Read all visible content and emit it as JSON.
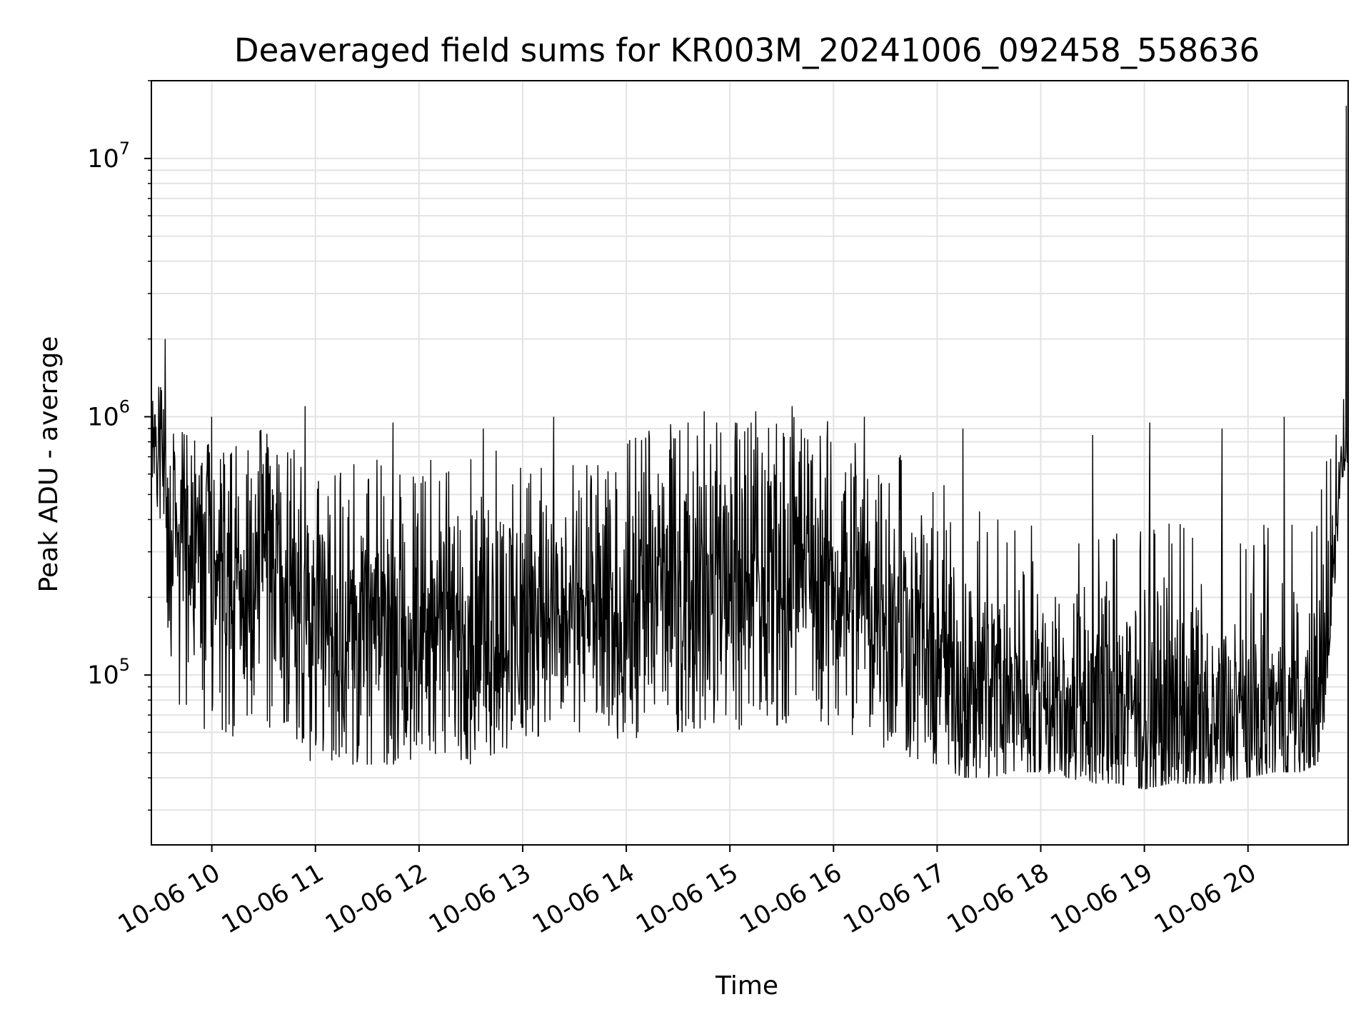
{
  "chart_data": {
    "type": "line",
    "title": "Deaveraged field sums for KR003M_20241006_092458_558636",
    "xlabel": "Time",
    "ylabel": "Peak ADU - average",
    "yscale": "log",
    "grid": true,
    "x_range": [
      "2024-10-06 09:25",
      "2024-10-06 20:58"
    ],
    "ylim": [
      22000,
      20000000
    ],
    "x_ticks": [
      "10-06 10",
      "10-06 11",
      "10-06 12",
      "10-06 13",
      "10-06 14",
      "10-06 15",
      "10-06 16",
      "10-06 17",
      "10-06 18",
      "10-06 19",
      "10-06 20"
    ],
    "y_ticks": [
      {
        "value": 100000,
        "base": "10",
        "exp": "5"
      },
      {
        "value": 1000000,
        "base": "10",
        "exp": "6"
      },
      {
        "value": 10000000,
        "base": "10",
        "exp": "7"
      }
    ],
    "line_color": "#000000",
    "series": [
      {
        "x_hours": [
          9.42,
          9.5,
          9.58,
          9.67,
          9.75,
          9.83,
          9.92,
          10.0,
          10.17,
          10.33,
          10.5,
          10.67,
          10.83,
          11.0,
          11.25,
          11.5,
          11.75,
          12.0,
          12.25,
          12.5,
          12.75,
          13.0,
          13.25,
          13.5,
          13.75,
          14.0,
          14.25,
          14.5,
          14.75,
          15.0,
          15.25,
          15.5,
          15.75,
          16.0,
          16.25,
          16.5,
          16.75,
          17.0,
          17.25,
          17.5,
          17.75,
          18.0,
          18.25,
          18.5,
          18.75,
          19.0,
          19.25,
          19.5,
          19.75,
          20.0,
          20.25,
          20.5,
          20.67,
          20.75,
          20.83,
          20.92,
          20.97
        ],
        "center": [
          900000,
          700000,
          420000,
          330000,
          300000,
          290000,
          290000,
          300000,
          230000,
          220000,
          330000,
          300000,
          200000,
          170000,
          160000,
          150000,
          155000,
          150000,
          160000,
          150000,
          150000,
          170000,
          185000,
          175000,
          170000,
          180000,
          220000,
          240000,
          250000,
          250000,
          250000,
          260000,
          270000,
          250000,
          230000,
          200000,
          160000,
          110000,
          100000,
          100000,
          95000,
          90000,
          85000,
          80000,
          75000,
          72000,
          70000,
          70000,
          68000,
          70000,
          72000,
          70000,
          75000,
          100000,
          300000,
          700000,
          900000
        ],
        "upper": [
          1600000,
          1400000,
          1000000,
          900000,
          850000,
          850000,
          850000,
          850000,
          750000,
          800000,
          900000,
          900000,
          700000,
          650000,
          650000,
          700000,
          650000,
          700000,
          700000,
          700000,
          750000,
          700000,
          650000,
          650000,
          650000,
          800000,
          900000,
          950000,
          950000,
          950000,
          950000,
          1000000,
          1000000,
          950000,
          900000,
          850000,
          800000,
          600000,
          500000,
          450000,
          400000,
          400000,
          400000,
          380000,
          380000,
          380000,
          400000,
          380000,
          380000,
          400000,
          400000,
          380000,
          400000,
          700000,
          900000,
          1200000,
          1300000
        ],
        "lower": [
          600000,
          350000,
          130000,
          70000,
          60000,
          60000,
          60000,
          60000,
          55000,
          55000,
          60000,
          65000,
          50000,
          45000,
          45000,
          45000,
          45000,
          48000,
          50000,
          45000,
          50000,
          55000,
          60000,
          60000,
          60000,
          55000,
          60000,
          60000,
          60000,
          60000,
          60000,
          65000,
          65000,
          60000,
          55000,
          50000,
          48000,
          45000,
          40000,
          40000,
          42000,
          42000,
          40000,
          38000,
          38000,
          36000,
          38000,
          38000,
          38000,
          40000,
          42000,
          42000,
          45000,
          70000,
          200000,
          500000,
          650000
        ],
        "peaks": [
          {
            "x": 9.55,
            "y": 2000000
          },
          {
            "x": 10.0,
            "y": 1000000
          },
          {
            "x": 10.9,
            "y": 1100000
          },
          {
            "x": 11.75,
            "y": 950000
          },
          {
            "x": 12.62,
            "y": 900000
          },
          {
            "x": 13.3,
            "y": 1000000
          },
          {
            "x": 14.75,
            "y": 1050000
          },
          {
            "x": 15.25,
            "y": 1050000
          },
          {
            "x": 15.6,
            "y": 1100000
          },
          {
            "x": 16.3,
            "y": 1000000
          },
          {
            "x": 17.25,
            "y": 900000
          },
          {
            "x": 18.5,
            "y": 850000
          },
          {
            "x": 19.05,
            "y": 950000
          },
          {
            "x": 19.75,
            "y": 900000
          },
          {
            "x": 20.35,
            "y": 1000000
          },
          {
            "x": 20.95,
            "y": 16000000
          }
        ]
      }
    ]
  }
}
